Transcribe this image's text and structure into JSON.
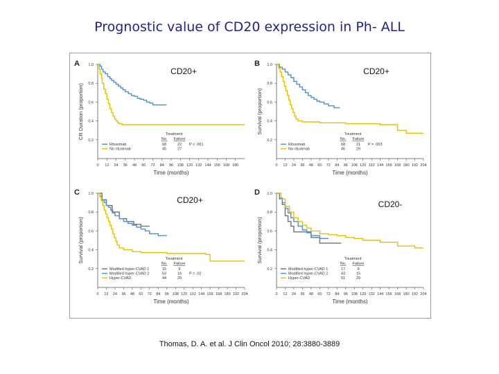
{
  "slide": {
    "title": "Prognostic value of CD20 expression in Ph- ALL",
    "citation": "Thomas, D. A. et al. J Clin Oncol 2010; 28:3880-3889"
  },
  "colors": {
    "blue": "#4a90d9",
    "yellow": "#e8c000",
    "gray": "#707070",
    "axis": "#555555",
    "title": "#1f1f8f"
  },
  "chart_data": [
    {
      "panel": "A",
      "overlay": "CD20+",
      "type": "line",
      "step": true,
      "ylabel": "CR Duration (proportion)",
      "xlabel": "Time (months)",
      "xlim": [
        0,
        192
      ],
      "ylim": [
        0,
        1.0
      ],
      "xticks": [
        0,
        12,
        24,
        36,
        48,
        60,
        72,
        84,
        96,
        108,
        120,
        132,
        144,
        156,
        168,
        180
      ],
      "yticks": [
        0.2,
        0.4,
        0.6,
        0.8,
        1.0
      ],
      "legend_title": "Treatment",
      "legend_columns": [
        "No.",
        "Failure"
      ],
      "pvalue": "P < .001",
      "series": [
        {
          "name": "Rituximab",
          "color": "#4a90d9",
          "n": "68",
          "failure": "22",
          "x": [
            0,
            3,
            5,
            7,
            10,
            13,
            16,
            18,
            21,
            24,
            27,
            30,
            33,
            36,
            40,
            44,
            48,
            52,
            56,
            60,
            64,
            68,
            72,
            90
          ],
          "y": [
            1.0,
            0.98,
            0.95,
            0.92,
            0.9,
            0.87,
            0.85,
            0.83,
            0.81,
            0.79,
            0.77,
            0.75,
            0.73,
            0.71,
            0.69,
            0.67,
            0.66,
            0.64,
            0.63,
            0.62,
            0.6,
            0.59,
            0.57,
            0.57
          ]
        },
        {
          "name": "No rituximab",
          "color": "#e8c000",
          "n": "45",
          "failure": "27",
          "x": [
            0,
            2,
            3,
            5,
            6,
            8,
            10,
            12,
            14,
            16,
            18,
            20,
            22,
            24,
            26,
            28,
            30,
            32,
            34,
            192
          ],
          "y": [
            1.0,
            0.95,
            0.9,
            0.85,
            0.8,
            0.74,
            0.69,
            0.63,
            0.58,
            0.53,
            0.49,
            0.45,
            0.42,
            0.4,
            0.38,
            0.37,
            0.37,
            0.36,
            0.36,
            0.36
          ]
        }
      ]
    },
    {
      "panel": "B",
      "overlay": "CD20+",
      "type": "line",
      "step": true,
      "ylabel": "Survival (proportion)",
      "xlabel": "Time (months)",
      "xlim": [
        0,
        204
      ],
      "ylim": [
        0,
        1.0
      ],
      "xticks": [
        0,
        12,
        24,
        36,
        48,
        60,
        72,
        84,
        96,
        108,
        120,
        132,
        144,
        156,
        168,
        180,
        192,
        204
      ],
      "yticks": [
        0.2,
        0.4,
        0.6,
        0.8,
        1.0
      ],
      "legend_title": "Treatment",
      "legend_columns": [
        "No.",
        "Failure"
      ],
      "pvalue": "P = .003",
      "series": [
        {
          "name": "Rituximab",
          "color": "#4a90d9",
          "n": "68",
          "failure": "21",
          "x": [
            0,
            4,
            8,
            12,
            16,
            20,
            24,
            28,
            32,
            36,
            40,
            44,
            48,
            52,
            56,
            60,
            66,
            72,
            80,
            88
          ],
          "y": [
            1.0,
            0.97,
            0.95,
            0.92,
            0.89,
            0.86,
            0.82,
            0.79,
            0.76,
            0.73,
            0.7,
            0.67,
            0.65,
            0.63,
            0.61,
            0.6,
            0.58,
            0.56,
            0.54,
            0.54
          ]
        },
        {
          "name": "No rituximab",
          "color": "#e8c000",
          "n": "46",
          "failure": "29",
          "x": [
            0,
            3,
            5,
            7,
            9,
            11,
            13,
            15,
            17,
            19,
            21,
            23,
            25,
            27,
            30,
            36,
            48,
            60,
            96,
            144,
            168,
            180,
            204
          ],
          "y": [
            1.0,
            0.96,
            0.92,
            0.87,
            0.82,
            0.77,
            0.72,
            0.67,
            0.62,
            0.57,
            0.53,
            0.49,
            0.45,
            0.42,
            0.4,
            0.39,
            0.39,
            0.38,
            0.37,
            0.36,
            0.3,
            0.27,
            0.27
          ]
        }
      ]
    },
    {
      "panel": "C",
      "overlay": "CD20+",
      "type": "line",
      "step": true,
      "ylabel": "Survival (proportion)",
      "xlabel": "Time (months)",
      "xlim": [
        0,
        204
      ],
      "ylim": [
        0,
        1.0
      ],
      "xticks": [
        0,
        12,
        24,
        36,
        48,
        60,
        72,
        84,
        96,
        108,
        120,
        132,
        144,
        156,
        168,
        180,
        192,
        204
      ],
      "yticks": [
        0.2,
        0.4,
        0.6,
        0.8,
        1.0
      ],
      "legend_title": "Treatment",
      "legend_columns": [
        "No.",
        "Failure"
      ],
      "pvalue": "P = .02",
      "series": [
        {
          "name": "Modified hyper-CVAD 1",
          "color": "#707070",
          "n": "15",
          "failure": "6",
          "x": [
            0,
            6,
            12,
            20,
            30,
            40,
            50,
            60,
            72
          ],
          "y": [
            1.0,
            0.93,
            0.87,
            0.8,
            0.73,
            0.7,
            0.67,
            0.65,
            0.65
          ]
        },
        {
          "name": "Modified hyper-CVAD 2",
          "color": "#4a90d9",
          "n": "53",
          "failure": "16",
          "x": [
            0,
            3,
            6,
            9,
            12,
            15,
            18,
            21,
            24,
            30,
            36,
            42,
            48,
            54,
            60,
            66,
            72,
            84,
            96
          ],
          "y": [
            1.0,
            0.97,
            0.93,
            0.9,
            0.87,
            0.85,
            0.82,
            0.79,
            0.76,
            0.73,
            0.7,
            0.68,
            0.66,
            0.64,
            0.62,
            0.6,
            0.57,
            0.55,
            0.55
          ]
        },
        {
          "name": "Hyper-CVAD",
          "color": "#e8c000",
          "n": "44",
          "failure": "29",
          "x": [
            0,
            3,
            5,
            7,
            9,
            11,
            13,
            15,
            17,
            19,
            21,
            23,
            25,
            27,
            30,
            36,
            48,
            60,
            96,
            150,
            156,
            204
          ],
          "y": [
            1.0,
            0.96,
            0.92,
            0.87,
            0.82,
            0.78,
            0.74,
            0.7,
            0.66,
            0.62,
            0.57,
            0.53,
            0.49,
            0.45,
            0.42,
            0.4,
            0.38,
            0.37,
            0.36,
            0.35,
            0.28,
            0.28
          ]
        }
      ]
    },
    {
      "panel": "D",
      "overlay": "CD20-",
      "type": "line",
      "step": true,
      "ylabel": "Survival (proportion)",
      "xlabel": "Time (months)",
      "xlim": [
        0,
        204
      ],
      "ylim": [
        0,
        1.0
      ],
      "xticks": [
        0,
        12,
        24,
        36,
        48,
        60,
        72,
        84,
        96,
        108,
        120,
        132,
        144,
        156,
        168,
        180,
        192,
        204
      ],
      "yticks": [
        0.2,
        0.4,
        0.6,
        0.8,
        1.0
      ],
      "legend_title": "Treatment",
      "legend_columns": [
        "No.",
        "Failure"
      ],
      "series": [
        {
          "name": "Modified hyper-CVAD 1",
          "color": "#707070",
          "n": "17",
          "failure": "9",
          "x": [
            0,
            4,
            8,
            12,
            16,
            20,
            24,
            48,
            60,
            72,
            90
          ],
          "y": [
            1.0,
            0.94,
            0.88,
            0.76,
            0.7,
            0.65,
            0.59,
            0.53,
            0.47,
            0.47,
            0.47
          ]
        },
        {
          "name": "Modified hyper-CVAD 2",
          "color": "#4a90d9",
          "n": "43",
          "failure": "15",
          "x": [
            0,
            4,
            8,
            12,
            16,
            20,
            24,
            30,
            36,
            42,
            48,
            60,
            72
          ],
          "y": [
            1.0,
            0.95,
            0.9,
            0.84,
            0.79,
            0.74,
            0.7,
            0.65,
            0.61,
            0.58,
            0.55,
            0.52,
            0.52
          ]
        },
        {
          "name": "Hyper-CVAD",
          "color": "#e8c000",
          "n": "51",
          "failure": "29",
          "x": [
            0,
            6,
            12,
            18,
            24,
            30,
            36,
            42,
            48,
            60,
            72,
            84,
            96,
            108,
            120,
            144,
            168,
            192,
            204
          ],
          "y": [
            1.0,
            0.94,
            0.86,
            0.8,
            0.74,
            0.7,
            0.66,
            0.63,
            0.6,
            0.57,
            0.56,
            0.55,
            0.53,
            0.52,
            0.5,
            0.48,
            0.44,
            0.42,
            0.42
          ]
        }
      ]
    }
  ]
}
